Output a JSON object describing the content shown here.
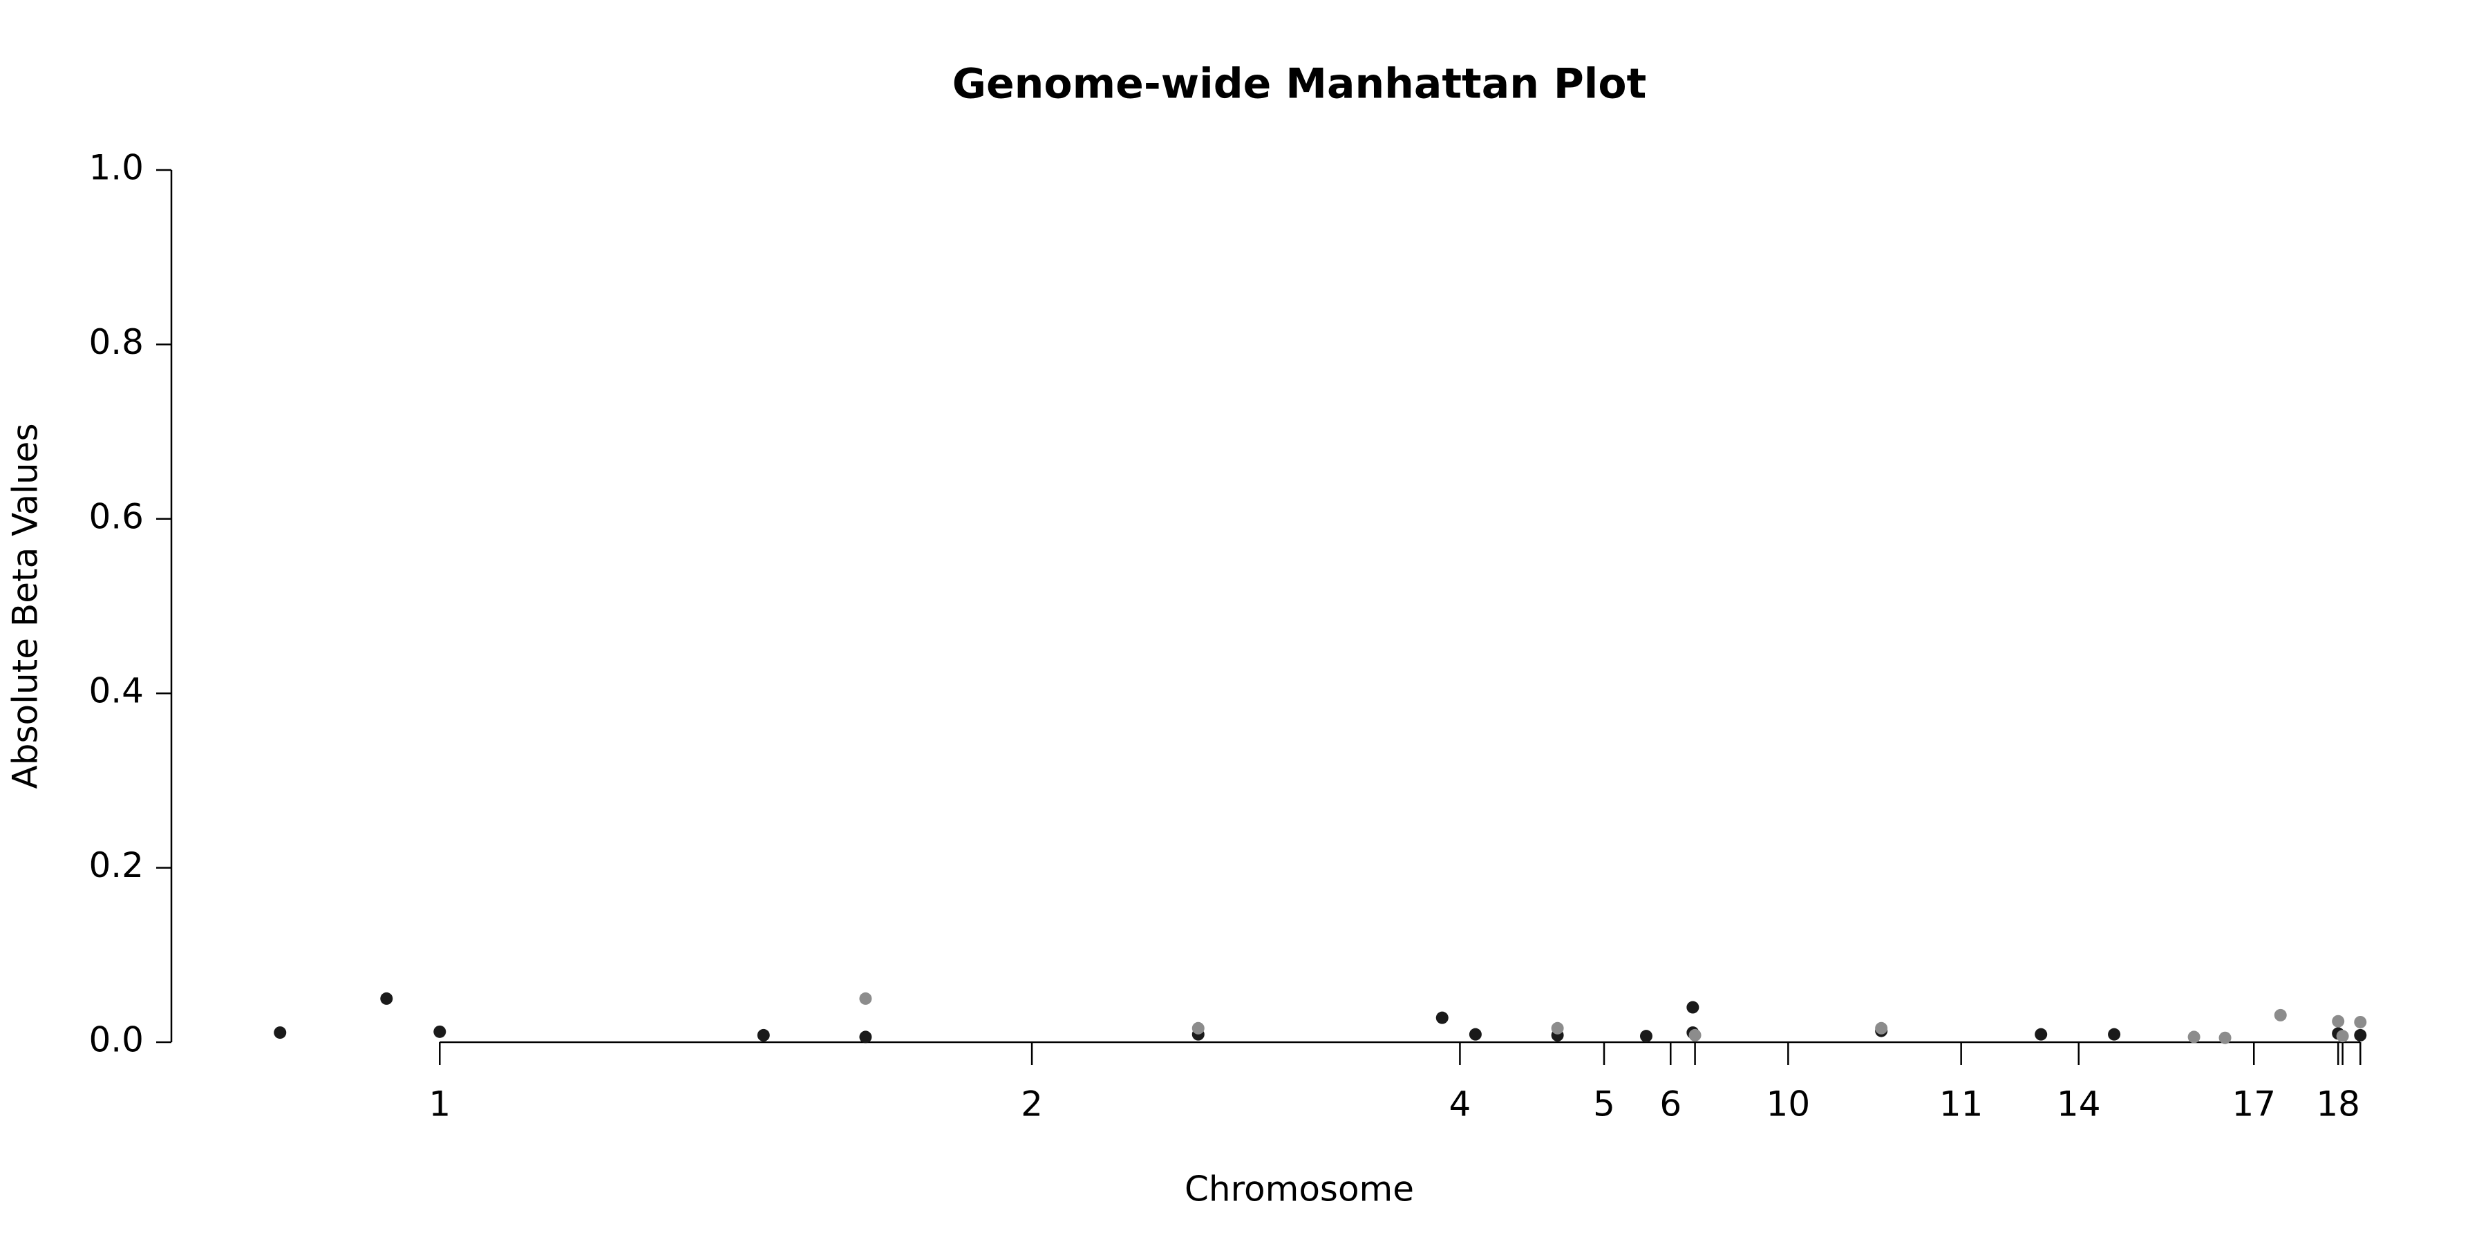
{
  "chart_data": {
    "type": "scatter",
    "title": "Genome-wide Manhattan Plot",
    "x_label": "Chromosome",
    "y_label": "Absolute Beta Values",
    "xlim": [
      0,
      100
    ],
    "ylim": [
      0,
      1
    ],
    "yticks": [
      {
        "value": 0,
        "label": "0.0"
      },
      {
        "value": 0.2,
        "label": "0.2"
      },
      {
        "value": 0.4,
        "label": "0.4"
      },
      {
        "value": 0.6,
        "label": "0.6"
      },
      {
        "value": 0.8,
        "label": "0.8"
      },
      {
        "value": 1,
        "label": "1.0"
      }
    ],
    "xticks": [
      {
        "value": 12.1,
        "label": "1"
      },
      {
        "value": 38.8,
        "label": "2"
      },
      {
        "value": 58.1,
        "label": "4"
      },
      {
        "value": 64.6,
        "label": "5"
      },
      {
        "value": 67.6,
        "label": "6"
      },
      {
        "value": 68.7,
        "label": null
      },
      {
        "value": 72.9,
        "label": "10"
      },
      {
        "value": 80.7,
        "label": "11"
      },
      {
        "value": 86.0,
        "label": "14"
      },
      {
        "value": 93.9,
        "label": "17"
      },
      {
        "value": 97.7,
        "label": "18"
      },
      {
        "value": 97.9,
        "label": null
      },
      {
        "value": 98.7,
        "label": null
      }
    ],
    "series": [
      {
        "color": "#1a1a1a",
        "x": [
          4.9,
          9.7,
          12.1,
          26.7,
          31.3,
          46.3,
          57.3,
          58.8,
          62.5,
          66.5,
          68.6,
          68.6,
          77.1,
          84.3,
          87.6,
          97.7,
          98.7
        ],
        "values": [
          0.011,
          0.05,
          0.012,
          0.008,
          0.006,
          0.009,
          0.028,
          0.009,
          0.008,
          0.007,
          0.04,
          0.011,
          0.013,
          0.009,
          0.009,
          0.01,
          0.008
        ]
      },
      {
        "color": "#8c8c8c",
        "x": [
          31.3,
          46.3,
          62.5,
          68.7,
          77.1,
          91.2,
          92.6,
          95.1,
          97.7,
          97.9,
          98.7
        ],
        "values": [
          0.05,
          0.016,
          0.016,
          0.008,
          0.016,
          0.006,
          0.005,
          0.031,
          0.024,
          0.007,
          0.023
        ]
      }
    ]
  }
}
